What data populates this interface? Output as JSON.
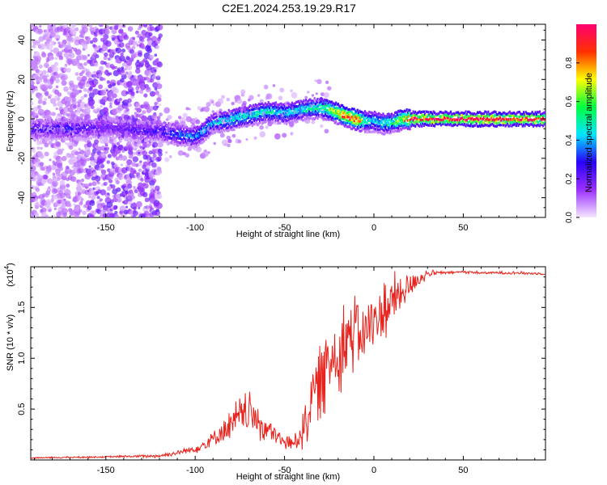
{
  "title": "C2E1.2024.253.19.29.R17",
  "chart_data": [
    {
      "type": "heatmap",
      "xlabel": "Height of straight line (km)",
      "ylabel": "Frequency (Hz)",
      "xlim": [
        -192,
        96
      ],
      "ylim": [
        -50,
        48
      ],
      "xticks": [
        -150,
        -100,
        -50,
        0,
        50
      ],
      "yticks": [
        -40,
        -20,
        0,
        20,
        40
      ],
      "xtick_labels": [
        "-150",
        "-100",
        "-50",
        "0",
        "50"
      ],
      "ytick_labels": [
        "-40",
        "-20",
        "0",
        "20",
        "40"
      ],
      "ridge": {
        "x": [
          -192,
          -170,
          -150,
          -130,
          -120,
          -110,
          -100,
          -90,
          -80,
          -70,
          -60,
          -50,
          -40,
          -30,
          -20,
          -15,
          -10,
          -5,
          0,
          5,
          10,
          15,
          20,
          30,
          50,
          70,
          96
        ],
        "frequency": [
          -5,
          -5,
          -4,
          -6,
          -6,
          -8,
          -9,
          -2,
          0,
          2,
          4,
          3,
          5,
          6,
          3,
          1,
          0,
          -1,
          -1,
          -2,
          -2,
          0,
          0,
          0,
          0,
          0,
          0
        ],
        "amplitude": [
          0.25,
          0.3,
          0.2,
          0.25,
          0.3,
          0.35,
          0.4,
          0.45,
          0.5,
          0.5,
          0.5,
          0.45,
          0.5,
          0.55,
          0.8,
          0.9,
          0.95,
          0.5,
          0.45,
          0.5,
          0.55,
          0.7,
          0.9,
          0.95,
          0.95,
          0.95,
          0.9
        ]
      },
      "colorbar": {
        "label": "Normalized spectral amplitude",
        "range": [
          0,
          1
        ],
        "ticks": [
          0.0,
          0.2,
          0.4,
          0.6,
          0.8
        ],
        "tick_labels": [
          "0.0",
          "0.2",
          "0.4",
          "0.6",
          "0.8"
        ],
        "colors": [
          "#f4e6ff",
          "#9b30ff",
          "#2a00ff",
          "#00e5ff",
          "#00ff40",
          "#ffff00",
          "#ff3000",
          "#ff0070"
        ]
      }
    },
    {
      "type": "line",
      "xlabel": "Height of straight line (km)",
      "ylabel": "SNR (10 * v/v)",
      "y_multiplier": "(x10",
      "y_multiplier_exp": "4",
      "y_multiplier_close": ")",
      "xlim": [
        -192,
        96
      ],
      "ylim": [
        0,
        1.9
      ],
      "xticks": [
        -150,
        -100,
        -50,
        0,
        50
      ],
      "yticks": [
        0.5,
        1.0,
        1.5
      ],
      "xtick_labels": [
        "-150",
        "-100",
        "-50",
        "0",
        "50"
      ],
      "ytick_labels": [
        "0.5",
        "1.0",
        "1.5"
      ],
      "series": [
        {
          "name": "SNR",
          "color": "#e8221c",
          "x": [
            -192,
            -150,
            -120,
            -110,
            -100,
            -95,
            -90,
            -85,
            -80,
            -75,
            -70,
            -65,
            -60,
            -55,
            -50,
            -45,
            -40,
            -35,
            -30,
            -25,
            -20,
            -15,
            -10,
            -5,
            0,
            5,
            10,
            15,
            20,
            25,
            30,
            35,
            40,
            50,
            60,
            70,
            80,
            96
          ],
          "values": [
            0.02,
            0.03,
            0.04,
            0.07,
            0.11,
            0.15,
            0.21,
            0.28,
            0.33,
            0.42,
            0.46,
            0.38,
            0.3,
            0.24,
            0.17,
            0.16,
            0.3,
            0.58,
            0.8,
            0.95,
            1.08,
            1.2,
            1.28,
            1.24,
            1.36,
            1.45,
            1.55,
            1.62,
            1.72,
            1.78,
            1.83,
            1.84,
            1.84,
            1.85,
            1.84,
            1.84,
            1.84,
            1.83
          ],
          "noise": [
            0.005,
            0.006,
            0.012,
            0.02,
            0.03,
            0.05,
            0.07,
            0.1,
            0.12,
            0.14,
            0.14,
            0.12,
            0.1,
            0.08,
            0.05,
            0.06,
            0.14,
            0.22,
            0.28,
            0.3,
            0.3,
            0.28,
            0.26,
            0.24,
            0.24,
            0.22,
            0.2,
            0.16,
            0.1,
            0.06,
            0.03,
            0.015,
            0.01,
            0.01,
            0.01,
            0.01,
            0.01,
            0.01
          ]
        }
      ]
    }
  ]
}
